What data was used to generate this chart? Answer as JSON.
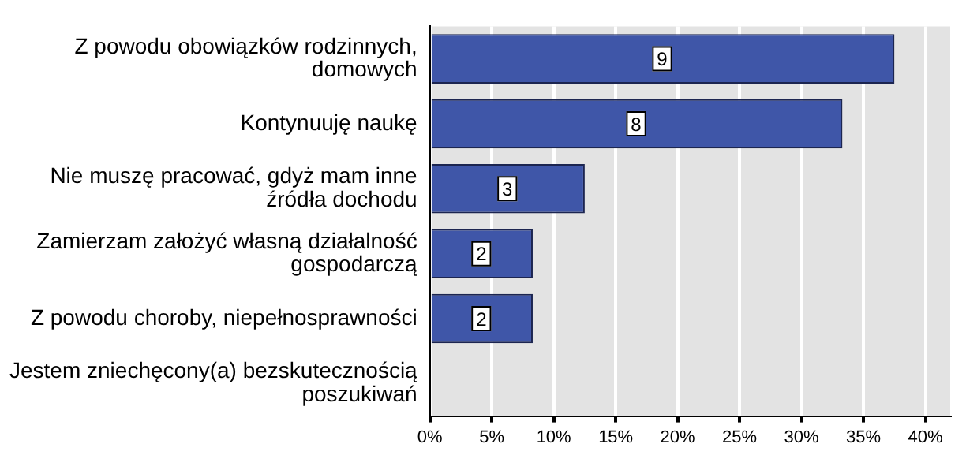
{
  "chart_data": {
    "type": "bar",
    "orientation": "horizontal",
    "categories": [
      "Z powodu obowiązków rodzinnych, domowych",
      "Kontynuuję naukę",
      "Nie muszę pracować, gdyż mam inne źródła dochodu",
      "Zamierzam założyć własną działalność gospodarczą",
      "Z powodu choroby, niepełnosprawności",
      "Jestem zniechęcony(a) bezskutecznością poszukiwań"
    ],
    "values": [
      37.5,
      33.3,
      12.5,
      8.3,
      8.3,
      0
    ],
    "annotations": [
      {
        "text": "9",
        "x": 18.75,
        "y": "Z powodu obowiązków rodzinnych, domowych"
      },
      {
        "text": "8",
        "x": 16.65,
        "y": "Kontynuuję naukę"
      },
      {
        "text": "3",
        "x": 6.25,
        "y": "Nie muszę pracować, gdyż mam inne źródła dochodu"
      },
      {
        "text": "2",
        "x": 4.15,
        "y": "Zamierzam założyć własną działalność gospodarczą"
      },
      {
        "text": "2",
        "x": 4.15,
        "y": "Z powodu choroby, niepełnosprawności"
      }
    ],
    "color": "#3f56a8",
    "xlim": [
      0,
      42
    ],
    "xticks": [
      {
        "value": 0,
        "label": "0%"
      },
      {
        "value": 5,
        "label": "5%"
      },
      {
        "value": 10,
        "label": "10%"
      },
      {
        "value": 15,
        "label": "15%"
      },
      {
        "value": 20,
        "label": "20%"
      },
      {
        "value": 25,
        "label": "25%"
      },
      {
        "value": 30,
        "label": "30%"
      },
      {
        "value": 35,
        "label": "35%"
      },
      {
        "value": 40,
        "label": "40%"
      }
    ],
    "grid": "x"
  }
}
